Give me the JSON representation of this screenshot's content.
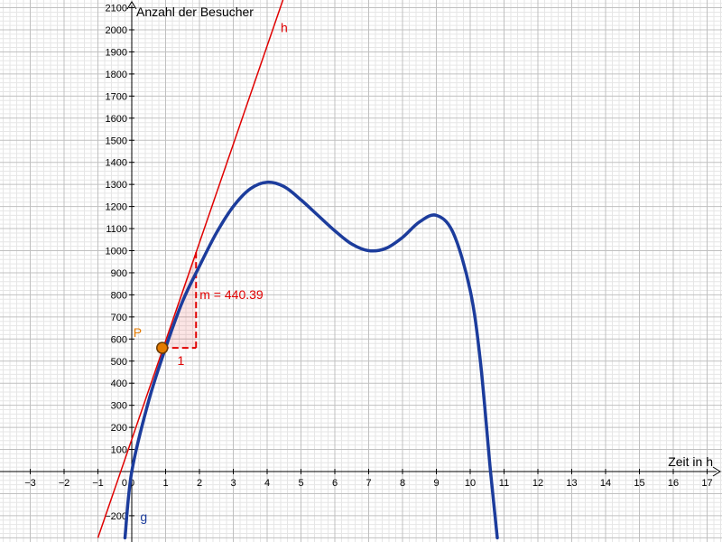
{
  "chart_data": {
    "type": "line",
    "xlabel": "Zeit in h",
    "ylabel": "Anzahl der Besucher",
    "xlim": [
      -4,
      17.5
    ],
    "ylim": [
      -300,
      2150
    ],
    "x_ticks": [
      -3,
      -2,
      -1,
      0,
      1,
      2,
      3,
      4,
      5,
      6,
      7,
      8,
      9,
      10,
      11,
      12,
      13,
      14,
      15,
      16,
      17
    ],
    "y_ticks": [
      -200,
      100,
      200,
      300,
      400,
      500,
      600,
      700,
      800,
      900,
      1000,
      1100,
      1200,
      1300,
      1400,
      1500,
      1600,
      1700,
      1800,
      1900,
      2000,
      2100
    ],
    "origin_label": "0",
    "grid": true,
    "series": [
      {
        "name": "g",
        "color": "#1c3c9c",
        "points": [
          [
            -0.2,
            -300
          ],
          [
            0,
            0
          ],
          [
            0.5,
            320
          ],
          [
            1,
            560
          ],
          [
            1.5,
            770
          ],
          [
            2,
            930
          ],
          [
            2.5,
            1080
          ],
          [
            3,
            1200
          ],
          [
            3.5,
            1280
          ],
          [
            4,
            1310
          ],
          [
            4.5,
            1290
          ],
          [
            5,
            1230
          ],
          [
            5.5,
            1160
          ],
          [
            6,
            1090
          ],
          [
            6.5,
            1030
          ],
          [
            7,
            1000
          ],
          [
            7.5,
            1010
          ],
          [
            8,
            1060
          ],
          [
            8.5,
            1130
          ],
          [
            9,
            1160
          ],
          [
            9.5,
            1080
          ],
          [
            10,
            820
          ],
          [
            10.3,
            500
          ],
          [
            10.6,
            0
          ],
          [
            10.8,
            -300
          ]
        ]
      },
      {
        "name": "h",
        "color": "#e00000",
        "points": [
          [
            -1,
            -300
          ],
          [
            4.5,
            2150
          ]
        ]
      }
    ],
    "point": {
      "name": "P",
      "x": 0.9,
      "y": 560,
      "color": "#e47b00"
    },
    "slope_triangle": {
      "x0": 0.9,
      "y0": 560,
      "run": 1,
      "rise": 440.39,
      "run_label": "1",
      "slope_label": "m = 440.39",
      "color": "#e00000"
    }
  }
}
